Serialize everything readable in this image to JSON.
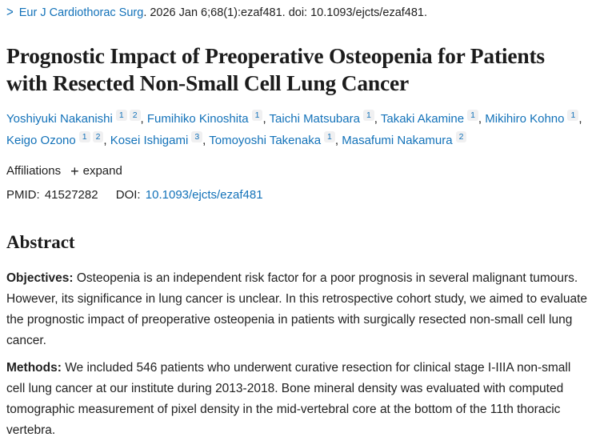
{
  "colors": {
    "link_blue": "#1372b9",
    "text_dark": "#212121",
    "superscript_bg": "#f0f0f1",
    "background": "#ffffff"
  },
  "breadcrumb": {
    "chevron": ">",
    "journal_link": "Eur J Cardiothorac Surg",
    "citation_rest": ". 2026 Jan 6;68(1):ezaf481. doi: 10.1093/ejcts/ezaf481."
  },
  "article": {
    "title": "Prognostic Impact of Preoperative Osteopenia for Patients with Resected Non-Small Cell Lung Cancer",
    "authors": [
      {
        "name": "Yoshiyuki Nakanishi",
        "sups": [
          "1",
          "2"
        ]
      },
      {
        "name": "Fumihiko Kinoshita",
        "sups": [
          "1"
        ]
      },
      {
        "name": "Taichi Matsubara",
        "sups": [
          "1"
        ]
      },
      {
        "name": "Takaki Akamine",
        "sups": [
          "1"
        ]
      },
      {
        "name": "Mikihiro Kohno",
        "sups": [
          "1"
        ]
      },
      {
        "name": "Keigo Ozono",
        "sups": [
          "1",
          "2"
        ]
      },
      {
        "name": "Kosei Ishigami",
        "sups": [
          "3"
        ]
      },
      {
        "name": "Tomoyoshi Takenaka",
        "sups": [
          "1"
        ]
      },
      {
        "name": "Masafumi Nakamura",
        "sups": [
          "2"
        ]
      }
    ],
    "affiliations_label": "Affiliations",
    "expand_icon": "+",
    "expand_label": "expand",
    "ids": {
      "pmid_label": "PMID:",
      "pmid_value": "41527282",
      "doi_label": "DOI:",
      "doi_link": "10.1093/ejcts/ezaf481"
    }
  },
  "abstract": {
    "heading": "Abstract",
    "sections": [
      {
        "label": "Objectives:",
        "text": "Osteopenia is an independent risk factor for a poor prognosis in several malignant tumours. However, its significance in lung cancer is unclear. In this retrospective cohort study, we aimed to evaluate the prognostic impact of preoperative osteopenia in patients with surgically resected non-small cell lung cancer."
      },
      {
        "label": "Methods:",
        "text": "We included 546 patients who underwent curative resection for clinical stage I-IIIA non-small cell lung cancer at our institute during 2013-2018. Bone mineral density was evaluated with computed tomographic measurement of pixel density in the mid-vertebral core at the bottom of the 11th thoracic vertebra."
      }
    ]
  }
}
